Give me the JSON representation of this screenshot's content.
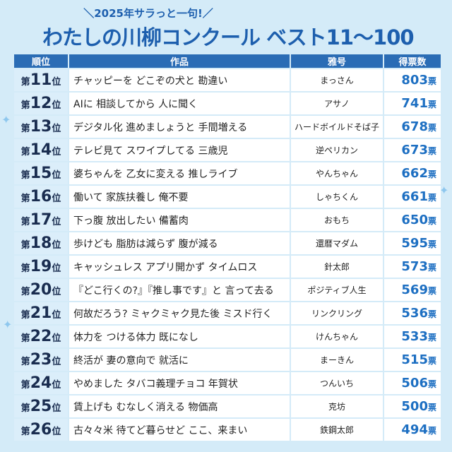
{
  "header": {
    "kicker": "＼2025年サラっと一句!／",
    "title": "わたしの川柳コンクール ベスト11～100"
  },
  "table": {
    "columns": [
      "順位",
      "作品",
      "雅号",
      "得票数"
    ],
    "rank_prefix": "第",
    "rank_suffix": "位",
    "vote_unit": "票",
    "rows": [
      [
        11,
        "チャッピーを どこぞの犬と 勘違い",
        "まっさん",
        803
      ],
      [
        12,
        "AIに 相談してから 人に聞く",
        "アサノ",
        741
      ],
      [
        13,
        "デジタル化 進めましょうと 手間増える",
        "ハードボイルドそば子",
        678
      ],
      [
        14,
        "テレビ見て スワイプしてる 三歳児",
        "逆ペリカン",
        673
      ],
      [
        15,
        "婆ちゃんを 乙女に変える 推しライブ",
        "やんちゃん",
        662
      ],
      [
        16,
        "働いて 家族扶養し 俺不要",
        "しゃちくん",
        661
      ],
      [
        17,
        "下っ腹 放出したい 備蓄肉",
        "おもち",
        650
      ],
      [
        18,
        "歩けども 脂肪は減らず 腹が減る",
        "還暦マダム",
        595
      ],
      [
        19,
        "キャッシュレス アプリ開かず タイムロス",
        "針太郎",
        573
      ],
      [
        20,
        "『どこ行くの?』『推し事です』と 言って去る",
        "ポジティブ人生",
        569
      ],
      [
        21,
        "何故だろう? ミャクミャク見た後 ミスド行く",
        "リンクリング",
        536
      ],
      [
        22,
        "体力を つける体力 既になし",
        "けんちゃん",
        533
      ],
      [
        23,
        "終活が 妻の意向で 就活に",
        "まーきん",
        515
      ],
      [
        24,
        "やめました タバコ義理チョコ 年賀状",
        "つんいち",
        506
      ],
      [
        25,
        "賃上げも むなしく消える 物価高",
        "克坊",
        500
      ],
      [
        26,
        "古々々米 待てど暮らせど ここ、来まい",
        "鉄鋼太郎",
        494
      ]
    ]
  }
}
